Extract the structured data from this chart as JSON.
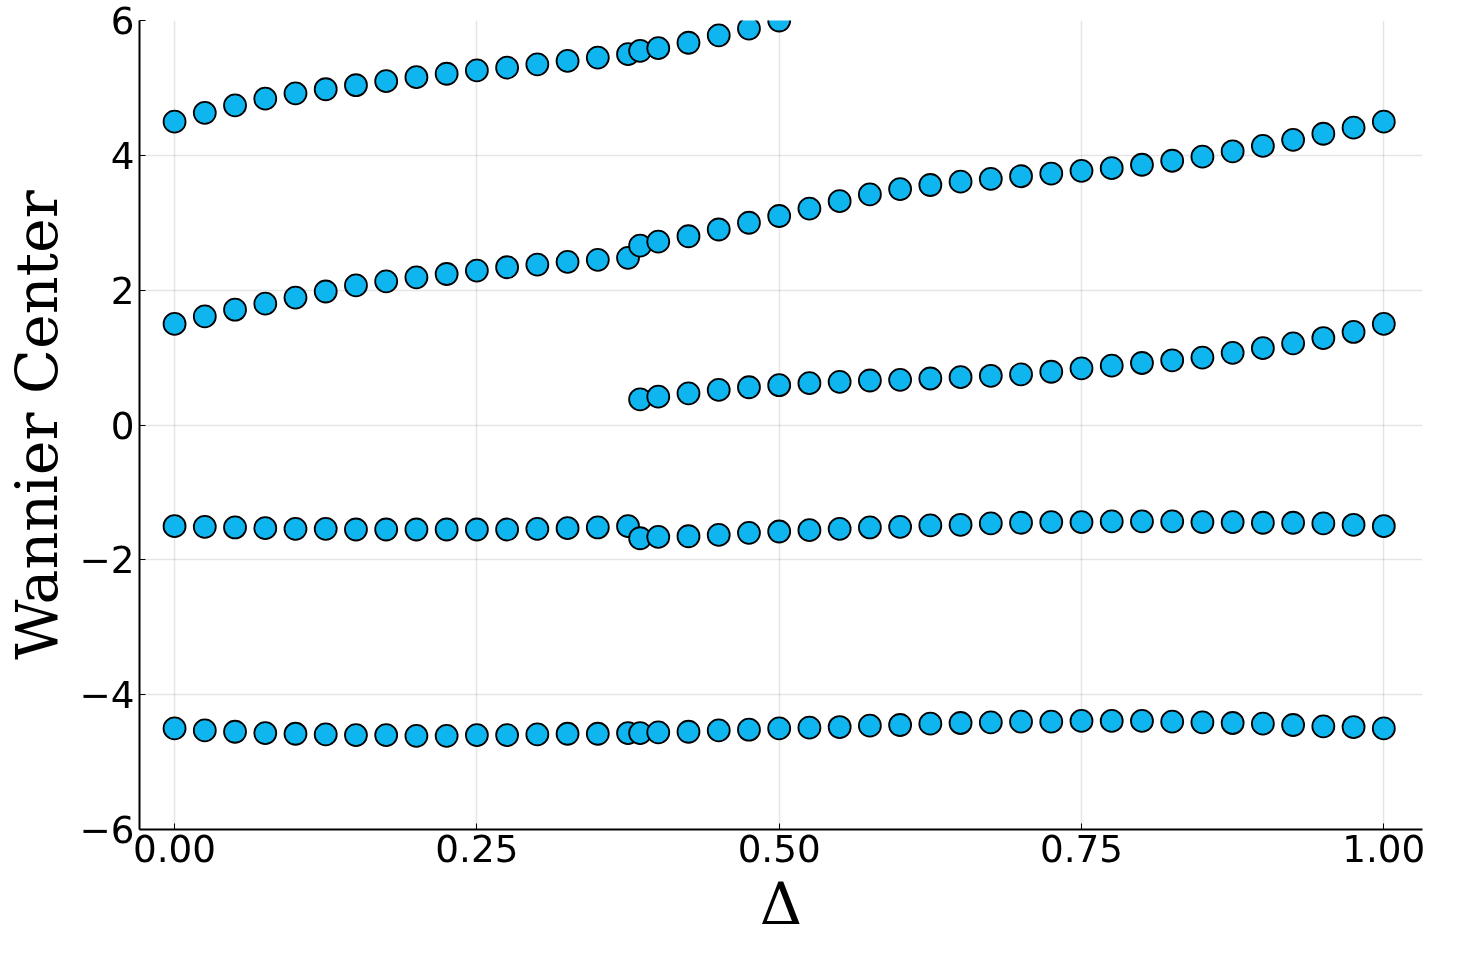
{
  "chart_data": {
    "type": "scatter",
    "xlabel": "Δ",
    "ylabel": "Wannier Center",
    "xlim": [
      -0.029,
      1.032
    ],
    "ylim": [
      -6,
      6
    ],
    "xticks": [
      {
        "value": 0,
        "label": "0.00"
      },
      {
        "value": 0.25,
        "label": "0.25"
      },
      {
        "value": 0.5,
        "label": "0.50"
      },
      {
        "value": 0.75,
        "label": "0.75"
      },
      {
        "value": 1,
        "label": "1.00"
      }
    ],
    "yticks": [
      {
        "value": -6,
        "label": "−6"
      },
      {
        "value": -4,
        "label": "−4"
      },
      {
        "value": -2,
        "label": "−2"
      },
      0,
      2,
      4,
      6
    ],
    "grid": true,
    "marker": "circle",
    "series": [
      {
        "color": "#0fb5ee",
        "x": [
          0,
          0.025,
          0.05,
          0.075,
          0.1,
          0.125,
          0.15,
          0.175,
          0.2,
          0.225,
          0.25,
          0.275,
          0.3,
          0.325,
          0.35,
          0.375,
          0.385,
          0.4,
          0.425,
          0.45,
          0.475,
          0.5
        ],
        "values": [
          4.5,
          4.63,
          4.74,
          4.84,
          4.92,
          4.98,
          5.04,
          5.1,
          5.16,
          5.21,
          5.26,
          5.3,
          5.35,
          5.4,
          5.45,
          5.5,
          5.55,
          5.59,
          5.67,
          5.78,
          5.88,
          6.0
        ]
      },
      {
        "color": "#0fb5ee",
        "x": [
          0,
          0.025,
          0.05,
          0.075,
          0.1,
          0.125,
          0.15,
          0.175,
          0.2,
          0.225,
          0.25,
          0.275,
          0.3,
          0.325,
          0.35,
          0.375
        ],
        "values": [
          1.5,
          1.61,
          1.71,
          1.8,
          1.89,
          1.98,
          2.07,
          2.13,
          2.19,
          2.24,
          2.29,
          2.34,
          2.38,
          2.42,
          2.45,
          2.48
        ]
      },
      {
        "color": "#0fb5ee",
        "x": [
          0.385,
          0.4,
          0.425,
          0.45,
          0.475,
          0.5,
          0.525,
          0.55,
          0.575,
          0.6,
          0.625,
          0.65,
          0.675,
          0.7,
          0.725,
          0.75,
          0.775,
          0.8,
          0.825,
          0.85,
          0.875,
          0.9,
          0.925,
          0.95,
          0.975,
          1.0
        ],
        "values": [
          2.66,
          2.72,
          2.8,
          2.9,
          3.0,
          3.1,
          3.21,
          3.32,
          3.42,
          3.5,
          3.56,
          3.61,
          3.65,
          3.69,
          3.73,
          3.77,
          3.81,
          3.86,
          3.92,
          3.98,
          4.06,
          4.14,
          4.23,
          4.32,
          4.41,
          4.5
        ]
      },
      {
        "color": "#0fb5ee",
        "x": [
          0.385,
          0.4,
          0.425,
          0.45,
          0.475,
          0.5,
          0.525,
          0.55,
          0.575,
          0.6,
          0.625,
          0.65,
          0.675,
          0.7,
          0.725,
          0.75,
          0.775,
          0.8,
          0.825,
          0.85,
          0.875,
          0.9,
          0.925,
          0.95,
          0.975,
          1.0
        ],
        "values": [
          0.38,
          0.42,
          0.47,
          0.52,
          0.56,
          0.59,
          0.62,
          0.64,
          0.66,
          0.67,
          0.69,
          0.71,
          0.73,
          0.75,
          0.79,
          0.84,
          0.88,
          0.92,
          0.96,
          1.0,
          1.07,
          1.14,
          1.21,
          1.29,
          1.38,
          1.5
        ]
      },
      {
        "color": "#0fb5ee",
        "x": [
          0,
          0.025,
          0.05,
          0.075,
          0.1,
          0.125,
          0.15,
          0.175,
          0.2,
          0.225,
          0.25,
          0.275,
          0.3,
          0.325,
          0.35,
          0.375
        ],
        "values": [
          -1.5,
          -1.51,
          -1.52,
          -1.53,
          -1.54,
          -1.54,
          -1.55,
          -1.55,
          -1.55,
          -1.55,
          -1.55,
          -1.55,
          -1.54,
          -1.53,
          -1.52,
          -1.5
        ]
      },
      {
        "color": "#0fb5ee",
        "x": [
          0.385,
          0.4,
          0.425,
          0.45,
          0.475,
          0.5,
          0.525,
          0.55,
          0.575,
          0.6,
          0.625,
          0.65,
          0.675,
          0.7,
          0.725,
          0.75,
          0.775,
          0.8,
          0.825,
          0.85,
          0.875,
          0.9,
          0.925,
          0.95,
          0.975,
          1.0
        ],
        "values": [
          -1.68,
          -1.66,
          -1.65,
          -1.63,
          -1.6,
          -1.58,
          -1.56,
          -1.54,
          -1.52,
          -1.51,
          -1.49,
          -1.48,
          -1.46,
          -1.45,
          -1.44,
          -1.44,
          -1.43,
          -1.43,
          -1.43,
          -1.44,
          -1.44,
          -1.45,
          -1.45,
          -1.46,
          -1.48,
          -1.5
        ]
      },
      {
        "color": "#0fb5ee",
        "x": [
          0,
          0.025,
          0.05,
          0.075,
          0.1,
          0.125,
          0.15,
          0.175,
          0.2,
          0.225,
          0.25,
          0.275,
          0.3,
          0.325,
          0.35,
          0.375,
          0.385,
          0.4,
          0.425,
          0.45,
          0.475,
          0.5,
          0.525,
          0.55,
          0.575,
          0.6,
          0.625,
          0.65,
          0.675,
          0.7,
          0.725,
          0.75,
          0.775,
          0.8,
          0.825,
          0.85,
          0.875,
          0.9,
          0.925,
          0.95,
          0.975,
          1.0
        ],
        "values": [
          -4.5,
          -4.53,
          -4.55,
          -4.57,
          -4.58,
          -4.59,
          -4.6,
          -4.6,
          -4.61,
          -4.61,
          -4.6,
          -4.6,
          -4.59,
          -4.58,
          -4.58,
          -4.57,
          -4.57,
          -4.56,
          -4.55,
          -4.53,
          -4.52,
          -4.5,
          -4.49,
          -4.48,
          -4.46,
          -4.45,
          -4.43,
          -4.42,
          -4.41,
          -4.4,
          -4.4,
          -4.39,
          -4.39,
          -4.39,
          -4.4,
          -4.41,
          -4.42,
          -4.43,
          -4.45,
          -4.47,
          -4.48,
          -4.5
        ]
      }
    ]
  }
}
